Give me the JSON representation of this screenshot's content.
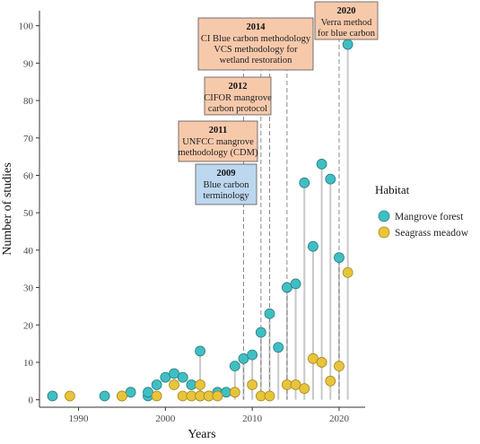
{
  "chart_data": {
    "type": "scatter",
    "title": "",
    "xlabel": "Years",
    "ylabel": "Number of studies",
    "xlim": [
      1985.5,
      2023
    ],
    "ylim": [
      -2,
      104
    ],
    "x_ticks": [
      1990,
      2000,
      2010,
      2020
    ],
    "y_ticks": [
      0,
      10,
      20,
      30,
      40,
      50,
      60,
      70,
      80,
      90,
      100
    ],
    "grid": false,
    "legend": {
      "title": "Habitat",
      "position": "right"
    },
    "series": [
      {
        "name": "Mangrove forest",
        "color": "#3fbfc3",
        "points": [
          {
            "x": 1987,
            "y": 1
          },
          {
            "x": 1993,
            "y": 1
          },
          {
            "x": 1995,
            "y": 1
          },
          {
            "x": 1996,
            "y": 2
          },
          {
            "x": 1998,
            "y": 1
          },
          {
            "x": 1998,
            "y": 2
          },
          {
            "x": 1999,
            "y": 4
          },
          {
            "x": 2000,
            "y": 6
          },
          {
            "x": 2001,
            "y": 7
          },
          {
            "x": 2002,
            "y": 6
          },
          {
            "x": 2003,
            "y": 4
          },
          {
            "x": 2004,
            "y": 13
          },
          {
            "x": 2004,
            "y": 1
          },
          {
            "x": 2005,
            "y": 1
          },
          {
            "x": 2006,
            "y": 2
          },
          {
            "x": 2007,
            "y": 2
          },
          {
            "x": 2008,
            "y": 9
          },
          {
            "x": 2009,
            "y": 11
          },
          {
            "x": 2010,
            "y": 12
          },
          {
            "x": 2011,
            "y": 18
          },
          {
            "x": 2012,
            "y": 23
          },
          {
            "x": 2013,
            "y": 14
          },
          {
            "x": 2014,
            "y": 30
          },
          {
            "x": 2015,
            "y": 31
          },
          {
            "x": 2016,
            "y": 58
          },
          {
            "x": 2017,
            "y": 41
          },
          {
            "x": 2018,
            "y": 63
          },
          {
            "x": 2019,
            "y": 59
          },
          {
            "x": 2020,
            "y": 38
          },
          {
            "x": 2021,
            "y": 95
          }
        ]
      },
      {
        "name": "Seagrass meadow",
        "color": "#e8c43a",
        "points": [
          {
            "x": 1989,
            "y": 1
          },
          {
            "x": 1995,
            "y": 1
          },
          {
            "x": 1999,
            "y": 1
          },
          {
            "x": 2001,
            "y": 4
          },
          {
            "x": 2002,
            "y": 1
          },
          {
            "x": 2003,
            "y": 1
          },
          {
            "x": 2004,
            "y": 1
          },
          {
            "x": 2004,
            "y": 4
          },
          {
            "x": 2005,
            "y": 1
          },
          {
            "x": 2006,
            "y": 1
          },
          {
            "x": 2008,
            "y": 2
          },
          {
            "x": 2010,
            "y": 4
          },
          {
            "x": 2011,
            "y": 1
          },
          {
            "x": 2012,
            "y": 1
          },
          {
            "x": 2014,
            "y": 4
          },
          {
            "x": 2015,
            "y": 4
          },
          {
            "x": 2016,
            "y": 3
          },
          {
            "x": 2017,
            "y": 11
          },
          {
            "x": 2018,
            "y": 10
          },
          {
            "x": 2019,
            "y": 5
          },
          {
            "x": 2020,
            "y": 9
          },
          {
            "x": 2021,
            "y": 34
          }
        ]
      }
    ],
    "stems_from_zero_for_years": [
      2004,
      2008,
      2009,
      2010,
      2011,
      2012,
      2013,
      2014,
      2015,
      2016,
      2017,
      2018,
      2019,
      2020,
      2021
    ],
    "event_lines": [
      2009,
      2011,
      2012,
      2014,
      2020
    ],
    "annotations": [
      {
        "year": 2009,
        "title": "2009",
        "lines": [
          "Blue carbon",
          "terminology"
        ],
        "fill": "#bcd7ee"
      },
      {
        "year": 2011,
        "title": "2011",
        "lines": [
          "UNFCC mangrove",
          "methodology (CDM)"
        ],
        "fill": "#f7c9ab"
      },
      {
        "year": 2012,
        "title": "2012",
        "lines": [
          "CIFOR mangrove",
          "carbon protocol"
        ],
        "fill": "#f7c9ab"
      },
      {
        "year": 2014,
        "title": "2014",
        "lines": [
          "CI Blue carbon methodology",
          "VCS methodology for",
          "wetland restoration"
        ],
        "fill": "#f7c9ab"
      },
      {
        "year": 2020,
        "title": "2020",
        "lines": [
          "Verra method",
          "for blue carbon"
        ],
        "fill": "#f7c9ab"
      }
    ]
  }
}
